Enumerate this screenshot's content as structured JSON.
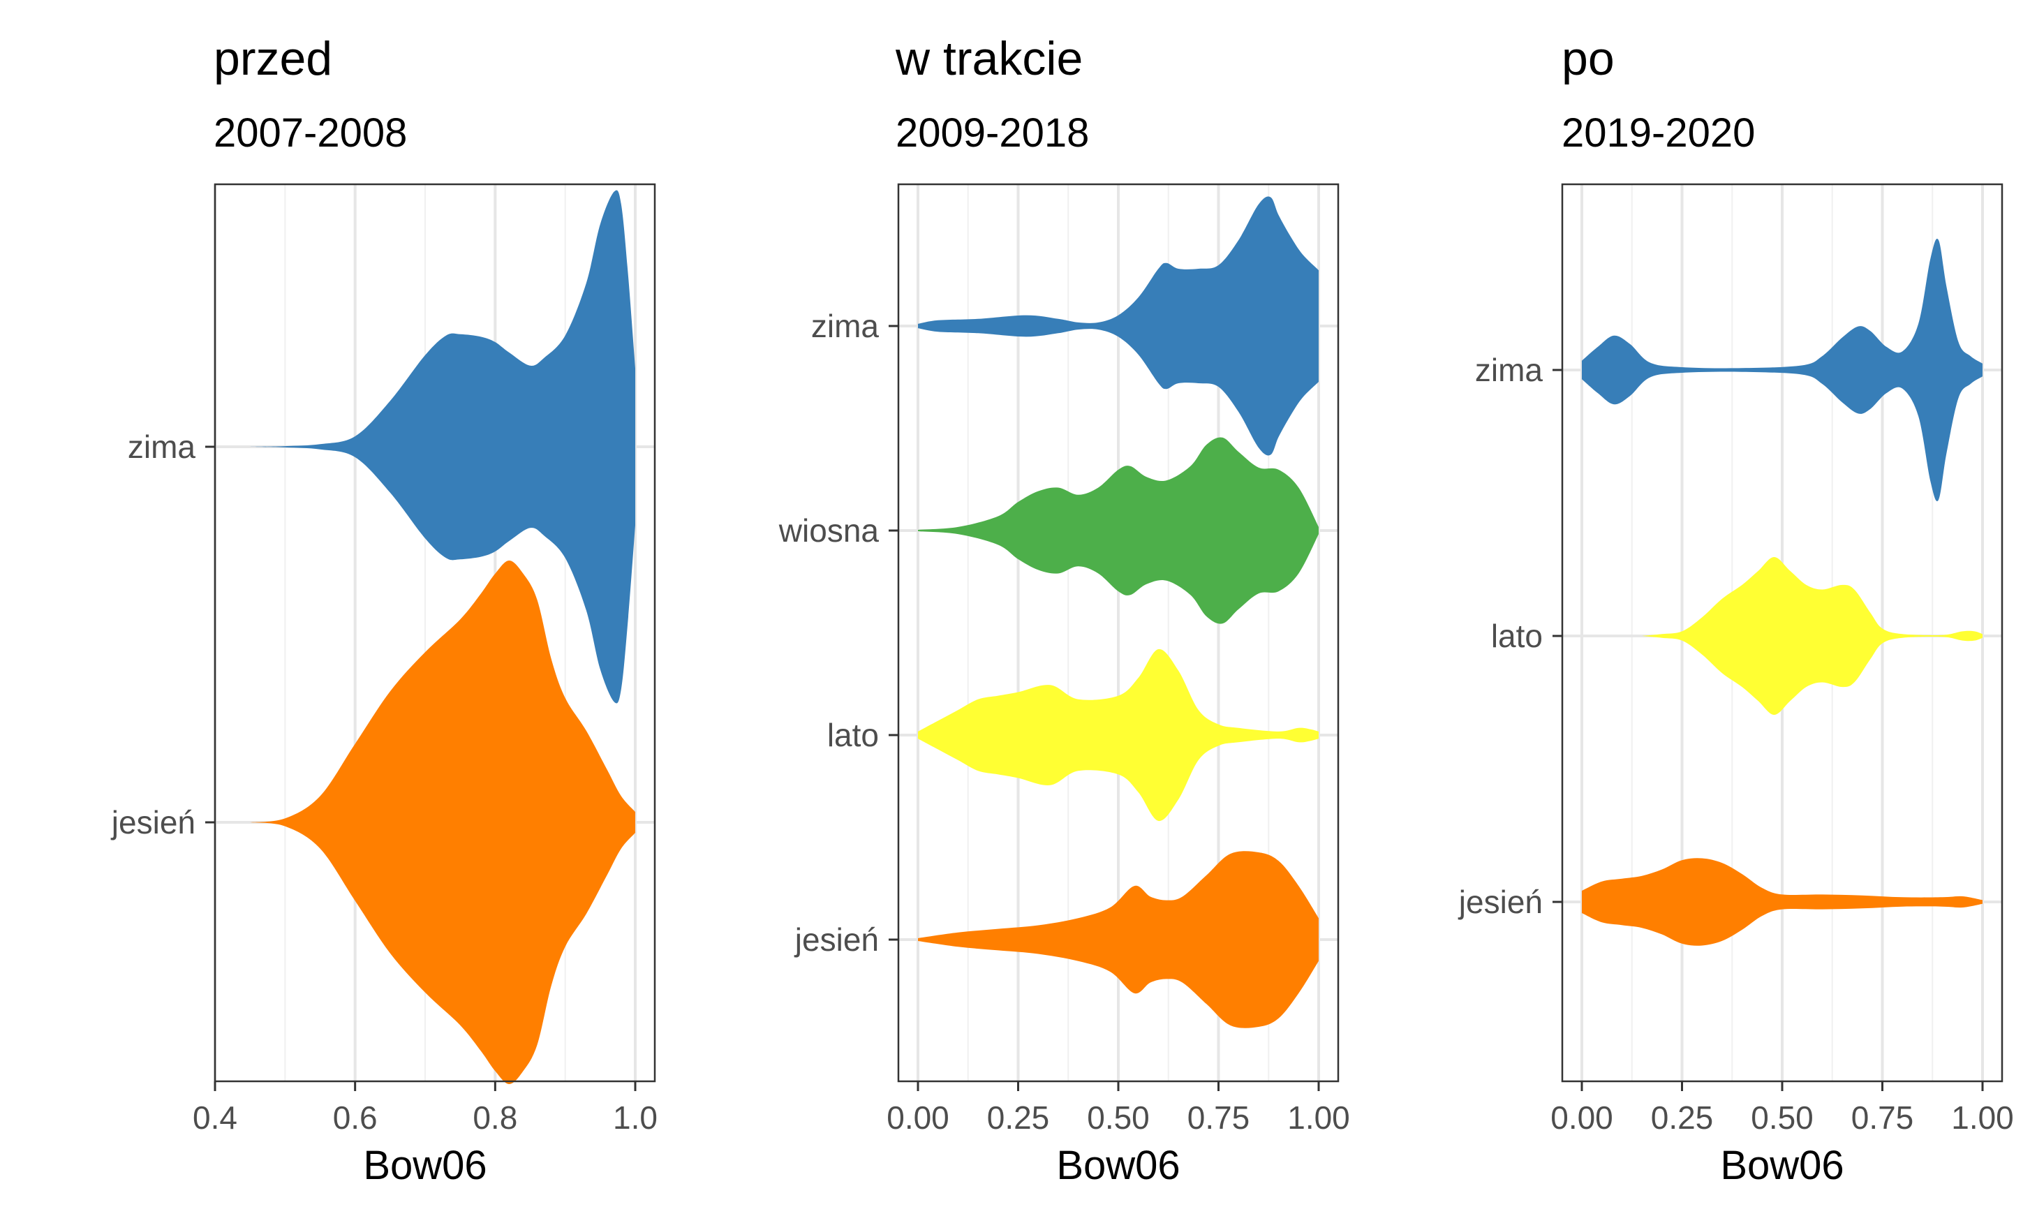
{
  "chart_data": [
    {
      "type": "violin",
      "title": "przed",
      "subtitle": "2007-2008",
      "xlabel": "Bow06",
      "xlim": [
        0.4,
        1.0
      ],
      "xticks": [
        0.4,
        0.6,
        0.8,
        1.0
      ],
      "xtick_labels": [
        "0.4",
        "0.6",
        "0.8",
        "1.0"
      ],
      "categories": [
        "zima",
        "jesień"
      ],
      "grid": true,
      "series": [
        {
          "name": "zima",
          "color": "#377EB8",
          "profile": [
            [
              0.45,
              0.0
            ],
            [
              0.5,
              0.005
            ],
            [
              0.55,
              0.02
            ],
            [
              0.6,
              0.08
            ],
            [
              0.65,
              0.35
            ],
            [
              0.7,
              0.7
            ],
            [
              0.73,
              0.85
            ],
            [
              0.75,
              0.86
            ],
            [
              0.78,
              0.84
            ],
            [
              0.8,
              0.8
            ],
            [
              0.82,
              0.72
            ],
            [
              0.85,
              0.62
            ],
            [
              0.87,
              0.68
            ],
            [
              0.9,
              0.85
            ],
            [
              0.93,
              1.25
            ],
            [
              0.95,
              1.7
            ],
            [
              0.97,
              1.95
            ],
            [
              0.98,
              1.85
            ],
            [
              0.99,
              1.3
            ],
            [
              1.0,
              0.6
            ]
          ]
        },
        {
          "name": "jesień",
          "color": "#FF7F00",
          "profile": [
            [
              0.45,
              0.0
            ],
            [
              0.5,
              0.03
            ],
            [
              0.55,
              0.2
            ],
            [
              0.6,
              0.6
            ],
            [
              0.65,
              1.0
            ],
            [
              0.7,
              1.3
            ],
            [
              0.75,
              1.55
            ],
            [
              0.78,
              1.75
            ],
            [
              0.8,
              1.9
            ],
            [
              0.82,
              2.0
            ],
            [
              0.84,
              1.9
            ],
            [
              0.86,
              1.7
            ],
            [
              0.88,
              1.25
            ],
            [
              0.9,
              0.95
            ],
            [
              0.93,
              0.7
            ],
            [
              0.96,
              0.4
            ],
            [
              0.98,
              0.2
            ],
            [
              1.0,
              0.08
            ]
          ]
        }
      ]
    },
    {
      "type": "violin",
      "title": "w trakcie",
      "subtitle": "2009-2018",
      "xlabel": "Bow06",
      "xlim": [
        0.0,
        1.0
      ],
      "xticks": [
        0.0,
        0.25,
        0.5,
        0.75,
        1.0
      ],
      "xtick_labels": [
        "0.00",
        "0.25",
        "0.50",
        "0.75",
        "1.00"
      ],
      "categories": [
        "zima",
        "wiosna",
        "lato",
        "jesień"
      ],
      "grid": true,
      "series": [
        {
          "name": "zima",
          "color": "#377EB8",
          "profile": [
            [
              0.0,
              0.03
            ],
            [
              0.05,
              0.08
            ],
            [
              0.15,
              0.1
            ],
            [
              0.27,
              0.15
            ],
            [
              0.35,
              0.1
            ],
            [
              0.4,
              0.05
            ],
            [
              0.45,
              0.05
            ],
            [
              0.5,
              0.15
            ],
            [
              0.55,
              0.4
            ],
            [
              0.6,
              0.8
            ],
            [
              0.62,
              0.88
            ],
            [
              0.65,
              0.8
            ],
            [
              0.7,
              0.8
            ],
            [
              0.75,
              0.85
            ],
            [
              0.8,
              1.2
            ],
            [
              0.85,
              1.7
            ],
            [
              0.88,
              1.8
            ],
            [
              0.9,
              1.55
            ],
            [
              0.93,
              1.25
            ],
            [
              0.96,
              1.0
            ],
            [
              1.0,
              0.78
            ]
          ]
        },
        {
          "name": "wiosna",
          "color": "#4DAF4A",
          "profile": [
            [
              0.0,
              0.01
            ],
            [
              0.1,
              0.05
            ],
            [
              0.2,
              0.2
            ],
            [
              0.25,
              0.4
            ],
            [
              0.3,
              0.55
            ],
            [
              0.35,
              0.6
            ],
            [
              0.4,
              0.5
            ],
            [
              0.45,
              0.6
            ],
            [
              0.5,
              0.85
            ],
            [
              0.53,
              0.9
            ],
            [
              0.57,
              0.75
            ],
            [
              0.62,
              0.7
            ],
            [
              0.68,
              0.9
            ],
            [
              0.72,
              1.2
            ],
            [
              0.76,
              1.3
            ],
            [
              0.8,
              1.1
            ],
            [
              0.85,
              0.88
            ],
            [
              0.9,
              0.85
            ],
            [
              0.95,
              0.6
            ],
            [
              1.0,
              0.05
            ]
          ]
        },
        {
          "name": "lato",
          "color": "#FFFF33",
          "profile": [
            [
              0.0,
              0.05
            ],
            [
              0.05,
              0.2
            ],
            [
              0.1,
              0.35
            ],
            [
              0.15,
              0.5
            ],
            [
              0.2,
              0.55
            ],
            [
              0.25,
              0.6
            ],
            [
              0.33,
              0.7
            ],
            [
              0.4,
              0.5
            ],
            [
              0.5,
              0.55
            ],
            [
              0.55,
              0.8
            ],
            [
              0.6,
              1.2
            ],
            [
              0.65,
              0.9
            ],
            [
              0.7,
              0.35
            ],
            [
              0.75,
              0.15
            ],
            [
              0.8,
              0.1
            ],
            [
              0.9,
              0.05
            ],
            [
              0.95,
              0.1
            ],
            [
              0.98,
              0.08
            ],
            [
              1.0,
              0.05
            ]
          ]
        },
        {
          "name": "jesień",
          "color": "#FF7F00",
          "profile": [
            [
              0.0,
              0.02
            ],
            [
              0.1,
              0.1
            ],
            [
              0.2,
              0.15
            ],
            [
              0.3,
              0.2
            ],
            [
              0.4,
              0.3
            ],
            [
              0.48,
              0.45
            ],
            [
              0.54,
              0.75
            ],
            [
              0.58,
              0.6
            ],
            [
              0.62,
              0.55
            ],
            [
              0.66,
              0.6
            ],
            [
              0.72,
              0.9
            ],
            [
              0.78,
              1.2
            ],
            [
              0.85,
              1.22
            ],
            [
              0.9,
              1.1
            ],
            [
              0.95,
              0.75
            ],
            [
              1.0,
              0.3
            ]
          ]
        }
      ]
    },
    {
      "type": "violin",
      "title": "po",
      "subtitle": "2019-2020",
      "xlabel": "Bow06",
      "xlim": [
        0.0,
        1.0
      ],
      "xticks": [
        0.0,
        0.25,
        0.5,
        0.75,
        1.0
      ],
      "xtick_labels": [
        "0.00",
        "0.25",
        "0.50",
        "0.75",
        "1.00"
      ],
      "categories": [
        "zima",
        "lato",
        "jesień"
      ],
      "grid": true,
      "series": [
        {
          "name": "zima",
          "color": "#377EB8",
          "profile": [
            [
              0.0,
              0.1
            ],
            [
              0.04,
              0.25
            ],
            [
              0.08,
              0.37
            ],
            [
              0.12,
              0.28
            ],
            [
              0.17,
              0.08
            ],
            [
              0.25,
              0.03
            ],
            [
              0.4,
              0.02
            ],
            [
              0.55,
              0.05
            ],
            [
              0.6,
              0.15
            ],
            [
              0.65,
              0.35
            ],
            [
              0.69,
              0.47
            ],
            [
              0.72,
              0.42
            ],
            [
              0.76,
              0.25
            ],
            [
              0.8,
              0.2
            ],
            [
              0.84,
              0.5
            ],
            [
              0.87,
              1.2
            ],
            [
              0.89,
              1.4
            ],
            [
              0.91,
              0.9
            ],
            [
              0.94,
              0.3
            ],
            [
              0.97,
              0.15
            ],
            [
              1.0,
              0.07
            ]
          ]
        },
        {
          "name": "lato",
          "color": "#FFFF33",
          "profile": [
            [
              0.15,
              0.0
            ],
            [
              0.2,
              0.02
            ],
            [
              0.25,
              0.05
            ],
            [
              0.3,
              0.2
            ],
            [
              0.35,
              0.4
            ],
            [
              0.4,
              0.55
            ],
            [
              0.44,
              0.7
            ],
            [
              0.48,
              0.85
            ],
            [
              0.52,
              0.7
            ],
            [
              0.56,
              0.55
            ],
            [
              0.6,
              0.5
            ],
            [
              0.65,
              0.55
            ],
            [
              0.68,
              0.5
            ],
            [
              0.72,
              0.25
            ],
            [
              0.75,
              0.08
            ],
            [
              0.8,
              0.02
            ],
            [
              0.9,
              0.01
            ],
            [
              0.95,
              0.05
            ],
            [
              0.98,
              0.05
            ],
            [
              1.0,
              0.02
            ]
          ]
        },
        {
          "name": "jesień",
          "color": "#FF7F00",
          "profile": [
            [
              0.0,
              0.12
            ],
            [
              0.05,
              0.22
            ],
            [
              0.1,
              0.25
            ],
            [
              0.15,
              0.28
            ],
            [
              0.2,
              0.35
            ],
            [
              0.25,
              0.45
            ],
            [
              0.3,
              0.47
            ],
            [
              0.35,
              0.42
            ],
            [
              0.4,
              0.3
            ],
            [
              0.45,
              0.15
            ],
            [
              0.5,
              0.08
            ],
            [
              0.6,
              0.08
            ],
            [
              0.7,
              0.07
            ],
            [
              0.8,
              0.05
            ],
            [
              0.9,
              0.05
            ],
            [
              0.95,
              0.06
            ],
            [
              1.0,
              0.02
            ]
          ]
        }
      ]
    }
  ]
}
